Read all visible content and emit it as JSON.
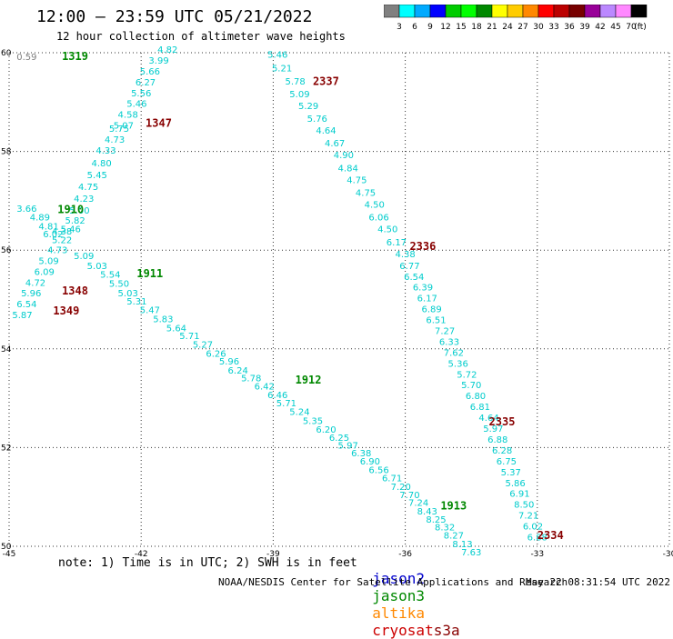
{
  "header": {
    "title": "12:00 — 23:59 UTC 05/21/2022",
    "subtitle": "12 hour collection of altimeter wave heights"
  },
  "colorbar": {
    "labels": [
      "3",
      "6",
      "9",
      "12",
      "15",
      "18",
      "21",
      "24",
      "27",
      "30",
      "33",
      "36",
      "39",
      "42",
      "45",
      "70"
    ],
    "unit": "(ft)",
    "colors": [
      "#808080",
      "#00ffff",
      "#00aaff",
      "#0000ff",
      "#00cc00",
      "#00ff00",
      "#008800",
      "#ffff00",
      "#ffcc00",
      "#ff8800",
      "#ff0000",
      "#bb0000",
      "#770000",
      "#990099",
      "#bb88ff",
      "#ff88ff",
      "#000000"
    ]
  },
  "footer": {
    "note": "note: 1) Time is in UTC; 2) SWH is in feet",
    "satellites": [
      {
        "name": "jason2",
        "color": "#0000cc"
      },
      {
        "name": "jason3",
        "color": "#008800"
      },
      {
        "name": "altika",
        "color": "#ff8800"
      },
      {
        "name": "cryosat",
        "color": "#cc0000"
      },
      {
        "name": "s3a",
        "color": "#880000"
      }
    ],
    "credit": "NOAA/NESDIS Center for Satellite Applications and Research",
    "timestamp": "May 22 08:31:54 UTC 2022"
  },
  "chart_data": {
    "type": "scatter",
    "title": "12 hour collection of altimeter wave heights",
    "xlim": [
      -45,
      -30
    ],
    "ylim": [
      50,
      60
    ],
    "x_ticks": [
      "-45",
      "-42",
      "-39",
      "-36",
      "-33",
      "-30"
    ],
    "y_ticks": [
      "60",
      "58",
      "56",
      "54",
      "52",
      "50"
    ],
    "grid": true,
    "value_color": "#00cccc",
    "time_labels": [
      {
        "text": "1319",
        "x": -43.8,
        "y": 59.85,
        "color": "#008800"
      },
      {
        "text": "2337",
        "x": -38.1,
        "y": 59.35,
        "color": "#880000"
      },
      {
        "text": "1347",
        "x": -41.9,
        "y": 58.5,
        "color": "#880000"
      },
      {
        "text": "1910",
        "x": -43.9,
        "y": 56.75,
        "color": "#008800"
      },
      {
        "text": "2336",
        "x": -35.9,
        "y": 56.0,
        "color": "#880000"
      },
      {
        "text": "1911",
        "x": -42.1,
        "y": 55.45,
        "color": "#008800"
      },
      {
        "text": "1348",
        "x": -43.8,
        "y": 55.1,
        "color": "#880000"
      },
      {
        "text": "1349",
        "x": -44.0,
        "y": 54.7,
        "color": "#880000"
      },
      {
        "text": "1912",
        "x": -38.5,
        "y": 53.3,
        "color": "#008800"
      },
      {
        "text": "2335",
        "x": -34.1,
        "y": 52.45,
        "color": "#880000"
      },
      {
        "text": "1913",
        "x": -35.2,
        "y": 50.75,
        "color": "#008800"
      },
      {
        "text": "2334",
        "x": -33.0,
        "y": 50.15,
        "color": "#880000"
      }
    ],
    "series": [
      {
        "name": "1347 pass",
        "points": [
          {
            "x": -41.4,
            "y": 60.0,
            "v": "4.82"
          },
          {
            "x": -41.6,
            "y": 59.78,
            "v": "3.99"
          },
          {
            "x": -41.8,
            "y": 59.56,
            "v": "5.66"
          },
          {
            "x": -41.9,
            "y": 59.34,
            "v": "6.27"
          },
          {
            "x": -42.0,
            "y": 59.12,
            "v": "5.56"
          },
          {
            "x": -42.1,
            "y": 58.9,
            "v": "5.46"
          },
          {
            "x": -42.3,
            "y": 58.68,
            "v": "4.58"
          },
          {
            "x": -42.4,
            "y": 58.46,
            "v": "5.07"
          },
          {
            "x": -42.5,
            "y": 58.4,
            "v": "5.75"
          },
          {
            "x": -42.6,
            "y": 58.18,
            "v": "4.73"
          },
          {
            "x": -42.8,
            "y": 57.96,
            "v": "4.33"
          },
          {
            "x": -42.9,
            "y": 57.7,
            "v": "4.80"
          },
          {
            "x": -43.0,
            "y": 57.46,
            "v": "5.45"
          },
          {
            "x": -43.2,
            "y": 57.22,
            "v": "4.75"
          },
          {
            "x": -43.3,
            "y": 56.98,
            "v": "4.23"
          },
          {
            "x": -43.4,
            "y": 56.74,
            "v": "5.00"
          },
          {
            "x": -43.5,
            "y": 56.54,
            "v": "5.82"
          },
          {
            "x": -43.6,
            "y": 56.36,
            "v": "5.46"
          },
          {
            "x": -43.8,
            "y": 56.14,
            "v": "5.22"
          },
          {
            "x": -43.9,
            "y": 55.94,
            "v": "4.73"
          },
          {
            "x": -44.1,
            "y": 55.72,
            "v": "5.09"
          },
          {
            "x": -44.2,
            "y": 55.5,
            "v": "6.09"
          },
          {
            "x": -44.4,
            "y": 55.28,
            "v": "4.72"
          },
          {
            "x": -44.5,
            "y": 55.06,
            "v": "5.96"
          },
          {
            "x": -44.6,
            "y": 54.84,
            "v": "6.54"
          },
          {
            "x": -44.7,
            "y": 54.62,
            "v": "5.87"
          }
        ]
      },
      {
        "name": "1910 pass",
        "points": [
          {
            "x": -44.6,
            "y": 56.78,
            "v": "3.66"
          },
          {
            "x": -44.3,
            "y": 56.6,
            "v": "4.89"
          },
          {
            "x": -44.1,
            "y": 56.42,
            "v": "4.81"
          },
          {
            "x": -44.0,
            "y": 56.26,
            "v": "6.02"
          },
          {
            "x": -43.8,
            "y": 56.32,
            "v": "4.38"
          },
          {
            "x": -43.3,
            "y": 55.82,
            "v": "5.09"
          },
          {
            "x": -43.0,
            "y": 55.62,
            "v": "5.03"
          },
          {
            "x": -42.7,
            "y": 55.44,
            "v": "5.54"
          },
          {
            "x": -42.5,
            "y": 55.26,
            "v": "5.50"
          },
          {
            "x": -42.3,
            "y": 55.06,
            "v": "5.03"
          },
          {
            "x": -42.1,
            "y": 54.9,
            "v": "5.31"
          },
          {
            "x": -41.8,
            "y": 54.72,
            "v": "5.47"
          },
          {
            "x": -41.5,
            "y": 54.54,
            "v": "5.83"
          },
          {
            "x": -41.2,
            "y": 54.36,
            "v": "5.64"
          },
          {
            "x": -40.9,
            "y": 54.2,
            "v": "5.71"
          },
          {
            "x": -40.6,
            "y": 54.02,
            "v": "5.27"
          },
          {
            "x": -40.3,
            "y": 53.84,
            "v": "6.26"
          },
          {
            "x": -40.0,
            "y": 53.68,
            "v": "5.96"
          },
          {
            "x": -39.8,
            "y": 53.5,
            "v": "6.24"
          },
          {
            "x": -39.5,
            "y": 53.34,
            "v": "5.78"
          },
          {
            "x": -39.2,
            "y": 53.18,
            "v": "6.42"
          },
          {
            "x": -38.9,
            "y": 53.0,
            "v": "6.46"
          },
          {
            "x": -38.7,
            "y": 52.84,
            "v": "5.71"
          },
          {
            "x": -38.4,
            "y": 52.66,
            "v": "5.24"
          },
          {
            "x": -38.1,
            "y": 52.48,
            "v": "5.35"
          },
          {
            "x": -37.8,
            "y": 52.3,
            "v": "6.20"
          },
          {
            "x": -37.5,
            "y": 52.14,
            "v": "6.25"
          },
          {
            "x": -37.3,
            "y": 51.98,
            "v": "5.97"
          },
          {
            "x": -37.0,
            "y": 51.82,
            "v": "6.38"
          },
          {
            "x": -36.8,
            "y": 51.66,
            "v": "6.90"
          },
          {
            "x": -36.6,
            "y": 51.48,
            "v": "6.56"
          },
          {
            "x": -36.3,
            "y": 51.32,
            "v": "6.71"
          },
          {
            "x": -36.1,
            "y": 51.14,
            "v": "7.20"
          },
          {
            "x": -35.9,
            "y": 50.98,
            "v": "7.70"
          },
          {
            "x": -35.7,
            "y": 50.82,
            "v": "7.24"
          },
          {
            "x": -35.5,
            "y": 50.64,
            "v": "8.43"
          },
          {
            "x": -35.3,
            "y": 50.48,
            "v": "8.25"
          },
          {
            "x": -35.1,
            "y": 50.32,
            "v": "8.32"
          },
          {
            "x": -34.9,
            "y": 50.16,
            "v": "8.27"
          },
          {
            "x": -34.7,
            "y": 49.98,
            "v": "8.13"
          },
          {
            "x": -34.5,
            "y": 49.82,
            "v": "7.63"
          }
        ]
      },
      {
        "name": "2334 pass",
        "points": [
          {
            "x": -38.9,
            "y": 59.9,
            "v": "5.46"
          },
          {
            "x": -38.8,
            "y": 59.62,
            "v": "5.21"
          },
          {
            "x": -38.5,
            "y": 59.36,
            "v": "5.78"
          },
          {
            "x": -38.4,
            "y": 59.1,
            "v": "5.09"
          },
          {
            "x": -38.2,
            "y": 58.86,
            "v": "5.29"
          },
          {
            "x": -38.0,
            "y": 58.6,
            "v": "5.76"
          },
          {
            "x": -37.8,
            "y": 58.36,
            "v": "4.64"
          },
          {
            "x": -37.6,
            "y": 58.1,
            "v": "4.67"
          },
          {
            "x": -37.4,
            "y": 57.86,
            "v": "4.90"
          },
          {
            "x": -37.3,
            "y": 57.6,
            "v": "4.84"
          },
          {
            "x": -37.1,
            "y": 57.36,
            "v": "4.75"
          },
          {
            "x": -36.9,
            "y": 57.1,
            "v": "4.75"
          },
          {
            "x": -36.7,
            "y": 56.86,
            "v": "4.50"
          },
          {
            "x": -36.6,
            "y": 56.6,
            "v": "6.06"
          },
          {
            "x": -36.4,
            "y": 56.36,
            "v": "4.50"
          },
          {
            "x": -36.2,
            "y": 56.1,
            "v": "6.17"
          },
          {
            "x": -36.0,
            "y": 55.86,
            "v": "4.38"
          },
          {
            "x": -35.9,
            "y": 55.62,
            "v": "6.77"
          },
          {
            "x": -35.8,
            "y": 55.4,
            "v": "6.54"
          },
          {
            "x": -35.6,
            "y": 55.18,
            "v": "6.39"
          },
          {
            "x": -35.5,
            "y": 54.96,
            "v": "6.17"
          },
          {
            "x": -35.4,
            "y": 54.74,
            "v": "6.89"
          },
          {
            "x": -35.3,
            "y": 54.52,
            "v": "6.51"
          },
          {
            "x": -35.1,
            "y": 54.3,
            "v": "7.27"
          },
          {
            "x": -35.0,
            "y": 54.08,
            "v": "6.33"
          },
          {
            "x": -34.9,
            "y": 53.86,
            "v": "7.62"
          },
          {
            "x": -34.8,
            "y": 53.64,
            "v": "5.36"
          },
          {
            "x": -34.6,
            "y": 53.42,
            "v": "5.72"
          },
          {
            "x": -34.5,
            "y": 53.2,
            "v": "5.70"
          },
          {
            "x": -34.4,
            "y": 52.98,
            "v": "6.80"
          },
          {
            "x": -34.3,
            "y": 52.76,
            "v": "6.81"
          },
          {
            "x": -34.1,
            "y": 52.54,
            "v": "4.64"
          },
          {
            "x": -34.0,
            "y": 52.32,
            "v": "5.97"
          },
          {
            "x": -33.9,
            "y": 52.1,
            "v": "6.88"
          },
          {
            "x": -33.8,
            "y": 51.88,
            "v": "6.28"
          },
          {
            "x": -33.7,
            "y": 51.66,
            "v": "6.75"
          },
          {
            "x": -33.6,
            "y": 51.44,
            "v": "5.37"
          },
          {
            "x": -33.5,
            "y": 51.22,
            "v": "5.86"
          },
          {
            "x": -33.4,
            "y": 51.0,
            "v": "6.91"
          },
          {
            "x": -33.3,
            "y": 50.78,
            "v": "8.50"
          },
          {
            "x": -33.2,
            "y": 50.56,
            "v": "7.21"
          },
          {
            "x": -33.1,
            "y": 50.34,
            "v": "6.02"
          },
          {
            "x": -33.0,
            "y": 50.12,
            "v": "6.88"
          }
        ]
      },
      {
        "name": "1319 pass",
        "points": [
          {
            "x": -44.6,
            "y": 59.85,
            "v": "0.59"
          }
        ]
      }
    ]
  }
}
